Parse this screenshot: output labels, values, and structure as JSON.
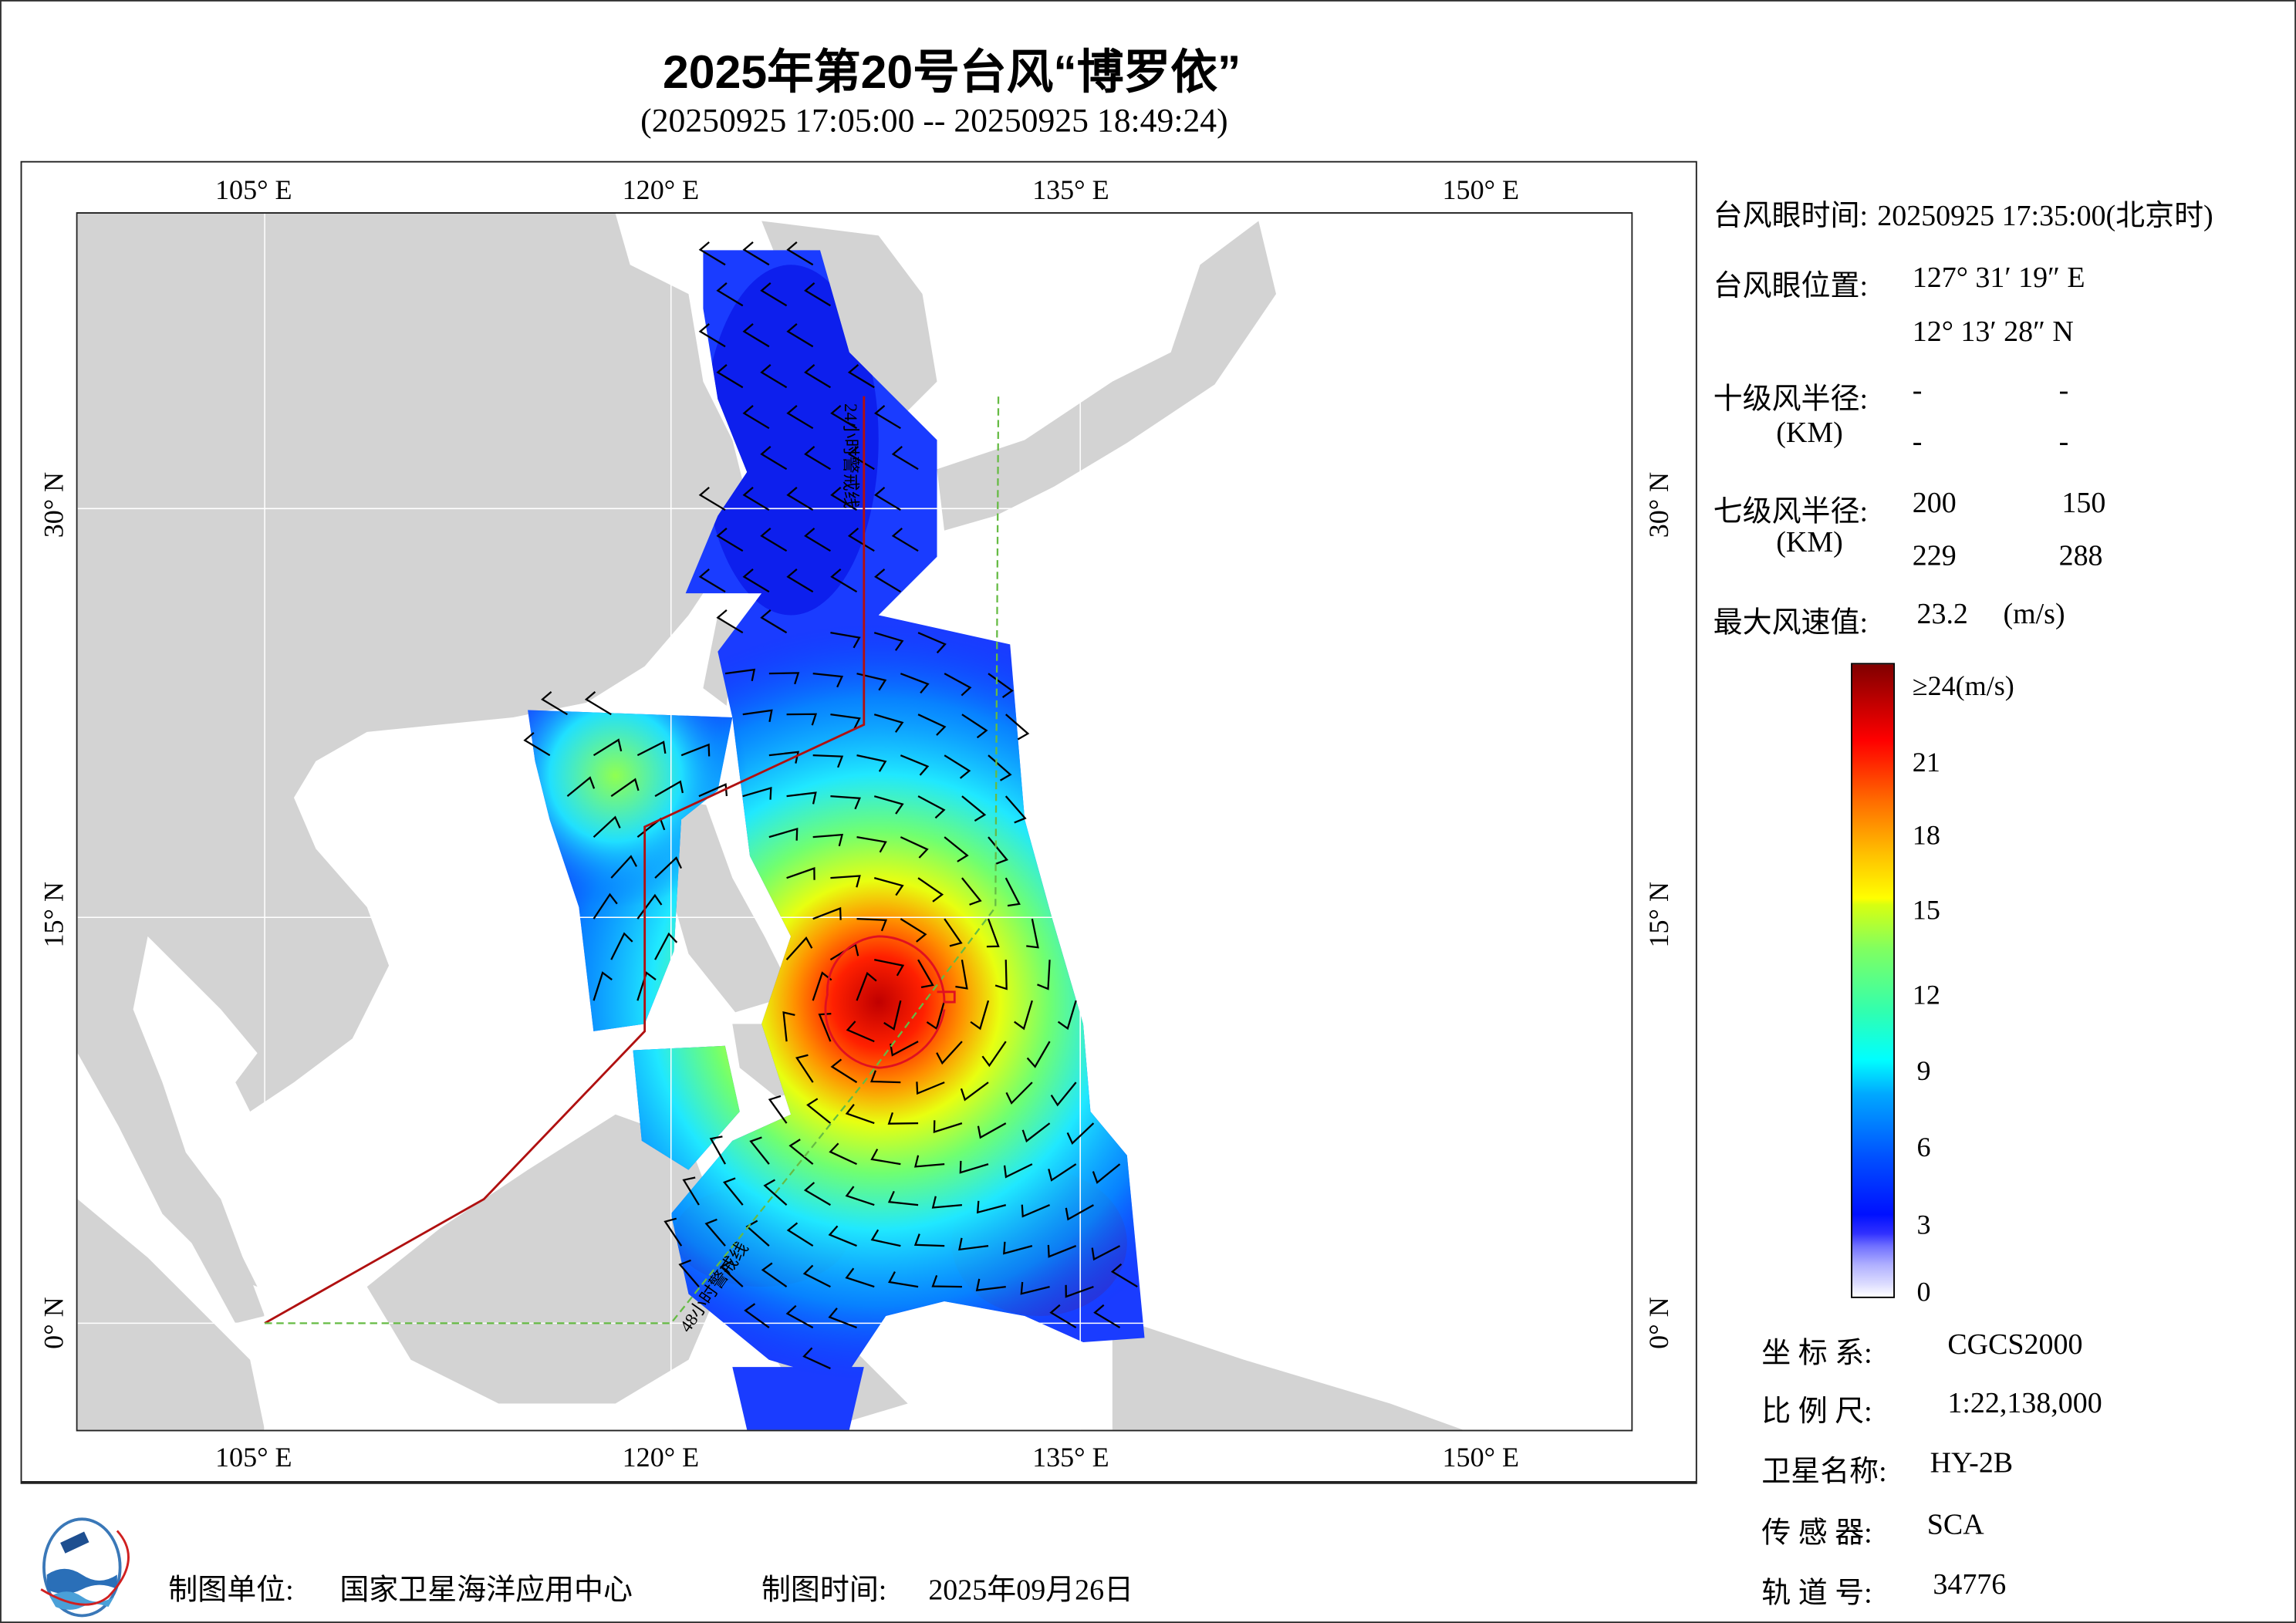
{
  "header": {
    "title": "2025年第20号台风“博罗依”",
    "subtitle": "(20250925 17:05:00 -- 20250925 18:49:24)"
  },
  "map": {
    "lon_ticks": [
      "105° E",
      "120° E",
      "135° E",
      "150° E"
    ],
    "lat_ticks": [
      "0° N",
      "15° N",
      "30° N"
    ],
    "warning_24h_label": "24小时警戒线",
    "warning_48h_label": "48小时警戒线",
    "colors": {
      "land": "#d3d3d3",
      "ocean": "#ffffff",
      "warning_24h": "#b01010",
      "warning_48h": "#66bb44",
      "wind_radius": "#e01020",
      "barb": "#000000"
    }
  },
  "info": {
    "eye_time_label": "台风眼时间:",
    "eye_time_value": "20250925 17:35:00(北京时)",
    "eye_pos_label": "台风眼位置:",
    "eye_lon": "127° 31′ 19″ E",
    "eye_lat": "12° 13′ 28″ N",
    "r10_label": "十级风半径:",
    "r10_unit": "(KM)",
    "r10_values": [
      "-",
      "-",
      "-",
      "-"
    ],
    "r7_label": "七级风半径:",
    "r7_unit": "(KM)",
    "r7_values": [
      "200",
      "150",
      "229",
      "288"
    ],
    "max_wind_label": "最大风速值:",
    "max_wind_value": "23.2",
    "max_wind_unit": "(m/s)"
  },
  "colorbar": {
    "labels": [
      "≥24(m/s)",
      "21",
      "18",
      "15",
      "12",
      "9",
      "6",
      "3",
      "0"
    ],
    "min": 0,
    "max": 24,
    "unit": "m/s"
  },
  "meta": [
    {
      "label": "坐 标 系:",
      "value": "CGCS2000"
    },
    {
      "label": "比 例 尺:",
      "value": "1:22,138,000"
    },
    {
      "label": "卫星名称:",
      "value": "HY-2B"
    },
    {
      "label": "传 感 器:",
      "value": "SCA"
    },
    {
      "label": "轨 道 号:",
      "value": "34776"
    }
  ],
  "footer": {
    "org_label": "制图单位:",
    "org_value": "国家卫星海洋应用中心",
    "date_label": "制图时间:",
    "date_value": "2025年09月26日"
  }
}
